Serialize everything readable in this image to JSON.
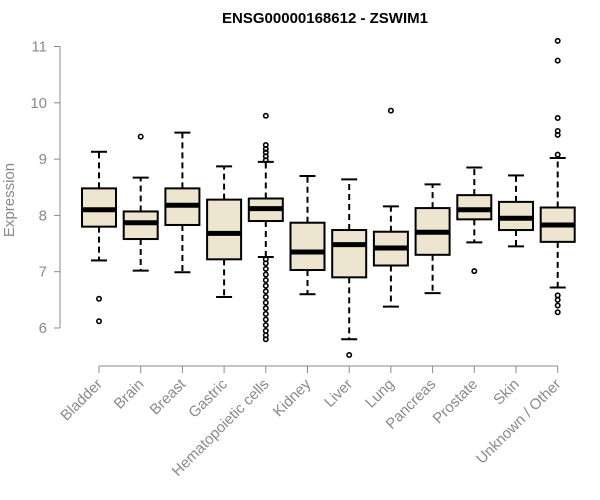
{
  "chart_data": {
    "type": "boxplot",
    "title": "ENSG00000168612 - ZSWIM1",
    "xlabel": "",
    "ylabel": "Expression",
    "ylim": [
      5.5,
      11.1
    ],
    "yticks": [
      6,
      7,
      8,
      9,
      10,
      11
    ],
    "box_fill": "#ede5cf",
    "median_color": "#000000",
    "categories": [
      "Bladder",
      "Brain",
      "Breast",
      "Gastric",
      "Hematopoietic cells",
      "Kidney",
      "Liver",
      "Lung",
      "Pancreas",
      "Prostate",
      "Skin",
      "Unknown / Other"
    ],
    "boxes": [
      {
        "name": "Bladder",
        "whisker_low": 7.2,
        "q1": 7.8,
        "median": 8.1,
        "q3": 8.48,
        "whisker_high": 9.13,
        "outliers": [
          6.52,
          6.12
        ]
      },
      {
        "name": "Brain",
        "whisker_low": 7.02,
        "q1": 7.58,
        "median": 7.87,
        "q3": 8.07,
        "whisker_high": 8.67,
        "outliers": [
          9.4
        ]
      },
      {
        "name": "Breast",
        "whisker_low": 6.99,
        "q1": 7.83,
        "median": 8.18,
        "q3": 8.48,
        "whisker_high": 9.47,
        "outliers": []
      },
      {
        "name": "Gastric",
        "whisker_low": 6.55,
        "q1": 7.22,
        "median": 7.68,
        "q3": 8.28,
        "whisker_high": 8.87,
        "outliers": []
      },
      {
        "name": "Hematopoietic cells",
        "whisker_low": 7.26,
        "q1": 7.9,
        "median": 8.12,
        "q3": 8.3,
        "whisker_high": 8.95,
        "outliers": [
          9.77,
          9.25,
          9.18,
          9.12,
          9.05,
          8.98,
          7.22,
          7.15,
          7.05,
          6.95,
          6.85,
          6.75,
          6.65,
          6.55,
          6.45,
          6.35,
          6.25,
          6.15,
          6.05,
          5.95,
          5.87,
          5.8
        ]
      },
      {
        "name": "Kidney",
        "whisker_low": 6.6,
        "q1": 7.03,
        "median": 7.35,
        "q3": 7.87,
        "whisker_high": 8.7,
        "outliers": []
      },
      {
        "name": "Liver",
        "whisker_low": 5.8,
        "q1": 6.9,
        "median": 7.48,
        "q3": 7.74,
        "whisker_high": 8.64,
        "outliers": [
          5.52
        ]
      },
      {
        "name": "Lung",
        "whisker_low": 6.38,
        "q1": 7.11,
        "median": 7.42,
        "q3": 7.71,
        "whisker_high": 8.16,
        "outliers": [
          9.86
        ]
      },
      {
        "name": "Pancreas",
        "whisker_low": 6.62,
        "q1": 7.3,
        "median": 7.7,
        "q3": 8.13,
        "whisker_high": 8.55,
        "outliers": []
      },
      {
        "name": "Prostate",
        "whisker_low": 7.52,
        "q1": 7.93,
        "median": 8.1,
        "q3": 8.36,
        "whisker_high": 8.85,
        "outliers": [
          7.01
        ]
      },
      {
        "name": "Skin",
        "whisker_low": 7.45,
        "q1": 7.74,
        "median": 7.95,
        "q3": 8.24,
        "whisker_high": 8.71,
        "outliers": []
      },
      {
        "name": "Unknown / Other",
        "whisker_low": 6.72,
        "q1": 7.53,
        "median": 7.83,
        "q3": 8.14,
        "whisker_high": 9.02,
        "outliers": [
          11.1,
          10.75,
          9.73,
          9.5,
          9.43,
          9.08,
          6.58,
          6.5,
          6.4,
          6.28
        ]
      }
    ]
  }
}
